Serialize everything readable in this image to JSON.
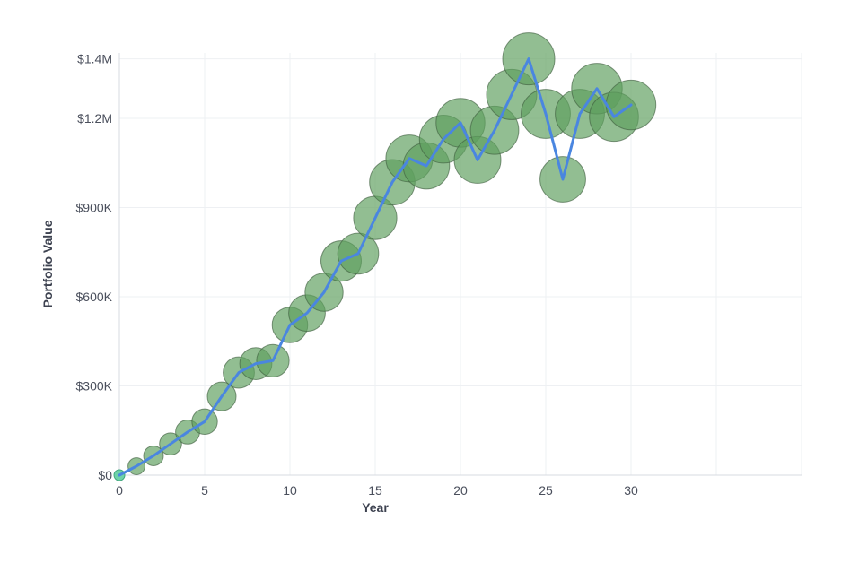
{
  "chart_data": {
    "type": "scatter",
    "xlabel": "Year",
    "ylabel": "Portfolio Value",
    "xlim": [
      0,
      40
    ],
    "ylim": [
      0,
      1420000
    ],
    "x_ticks": [
      0,
      5,
      10,
      15,
      20,
      25,
      30
    ],
    "x_tick_labels": [
      "0",
      "5",
      "10",
      "15",
      "20",
      "25",
      "30"
    ],
    "y_ticks": [
      0,
      300000,
      600000,
      900000,
      1200000,
      1400000
    ],
    "y_tick_labels": [
      "$0",
      "$300K",
      "$600K",
      "$900K",
      "$1.2M",
      "$1.4M"
    ],
    "grid": true,
    "line_color": "#4a86e0",
    "bubble_color": "#5f9f5f",
    "start_marker_color": "#6fd3a8",
    "series": [
      {
        "x": [
          0,
          1,
          2,
          3,
          4,
          5,
          6,
          7,
          8,
          9,
          10,
          11,
          12,
          13,
          14,
          15,
          16,
          17,
          18,
          19,
          20,
          21,
          22,
          23,
          24,
          25,
          26,
          27,
          28,
          29,
          30
        ],
        "y": [
          0,
          30000,
          65000,
          105000,
          145000,
          180000,
          265000,
          345000,
          375000,
          385000,
          505000,
          545000,
          615000,
          720000,
          745000,
          865000,
          985000,
          1065000,
          1040000,
          1130000,
          1185000,
          1060000,
          1160000,
          1280000,
          1400000,
          1215000,
          995000,
          1215000,
          1300000,
          1205000,
          1245000
        ]
      }
    ]
  }
}
